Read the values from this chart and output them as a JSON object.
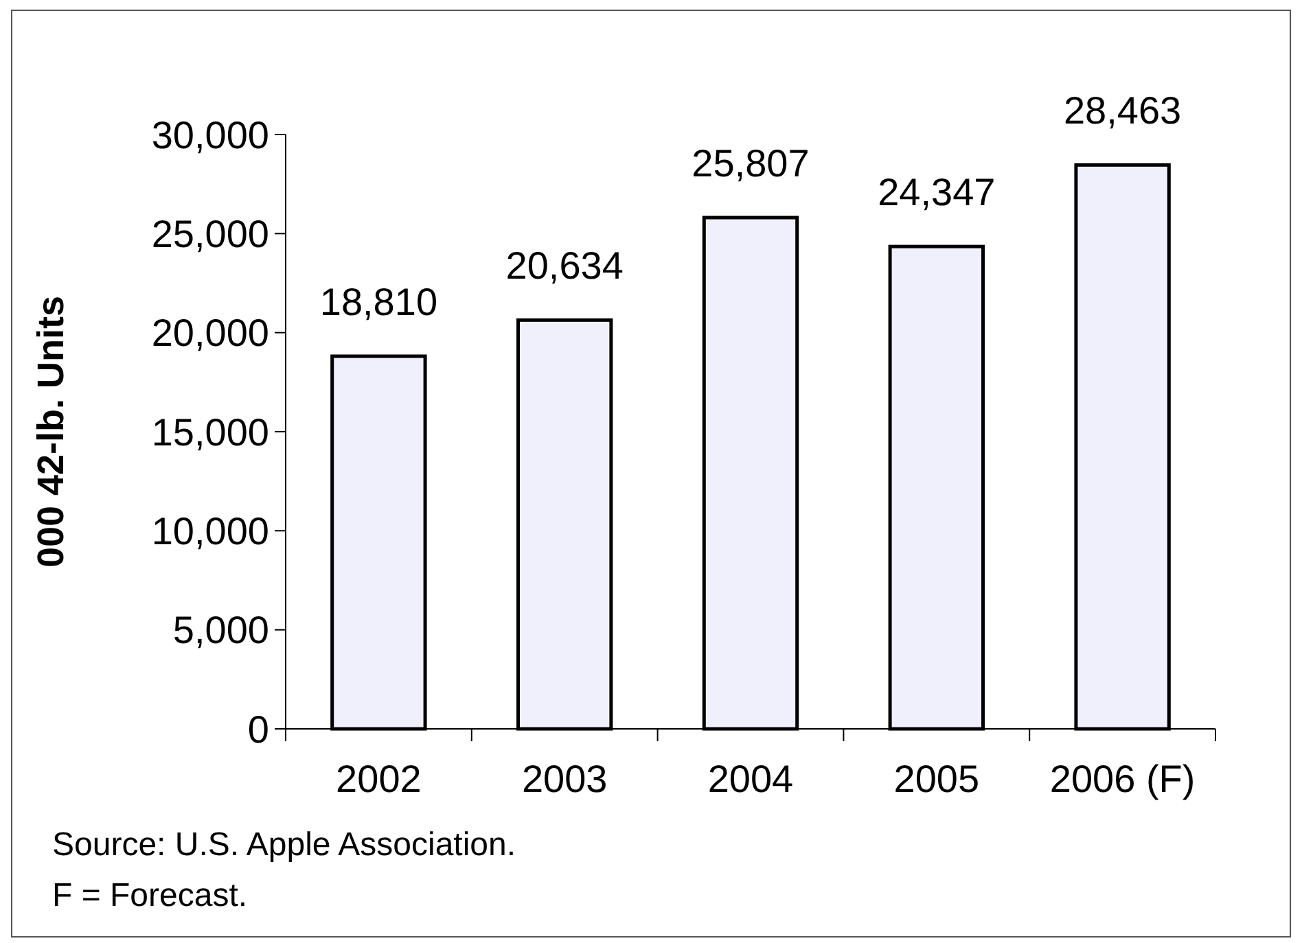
{
  "chart_data": {
    "type": "bar",
    "ylabel": "000 42-lb. Units",
    "categories": [
      "2002",
      "2003",
      "2004",
      "2005",
      "2006 (F)"
    ],
    "values": [
      18810,
      20634,
      25807,
      24347,
      28463
    ],
    "color": "#f0f0fc",
    "value_labels": [
      "18,810",
      "20,634",
      "25,807",
      "24,347",
      "28,463"
    ],
    "ylim": [
      0,
      30000
    ],
    "yticks": [
      {
        "value": 0,
        "label": "0"
      },
      {
        "value": 5000,
        "label": "5,000"
      },
      {
        "value": 10000,
        "label": "10,000"
      },
      {
        "value": 15000,
        "label": "15,000"
      },
      {
        "value": 20000,
        "label": "20,000"
      },
      {
        "value": 25000,
        "label": "25,000"
      },
      {
        "value": 30000,
        "label": "30,000"
      }
    ],
    "annotations": [
      "Source: U.S. Apple Association.",
      "F = Forecast."
    ]
  }
}
